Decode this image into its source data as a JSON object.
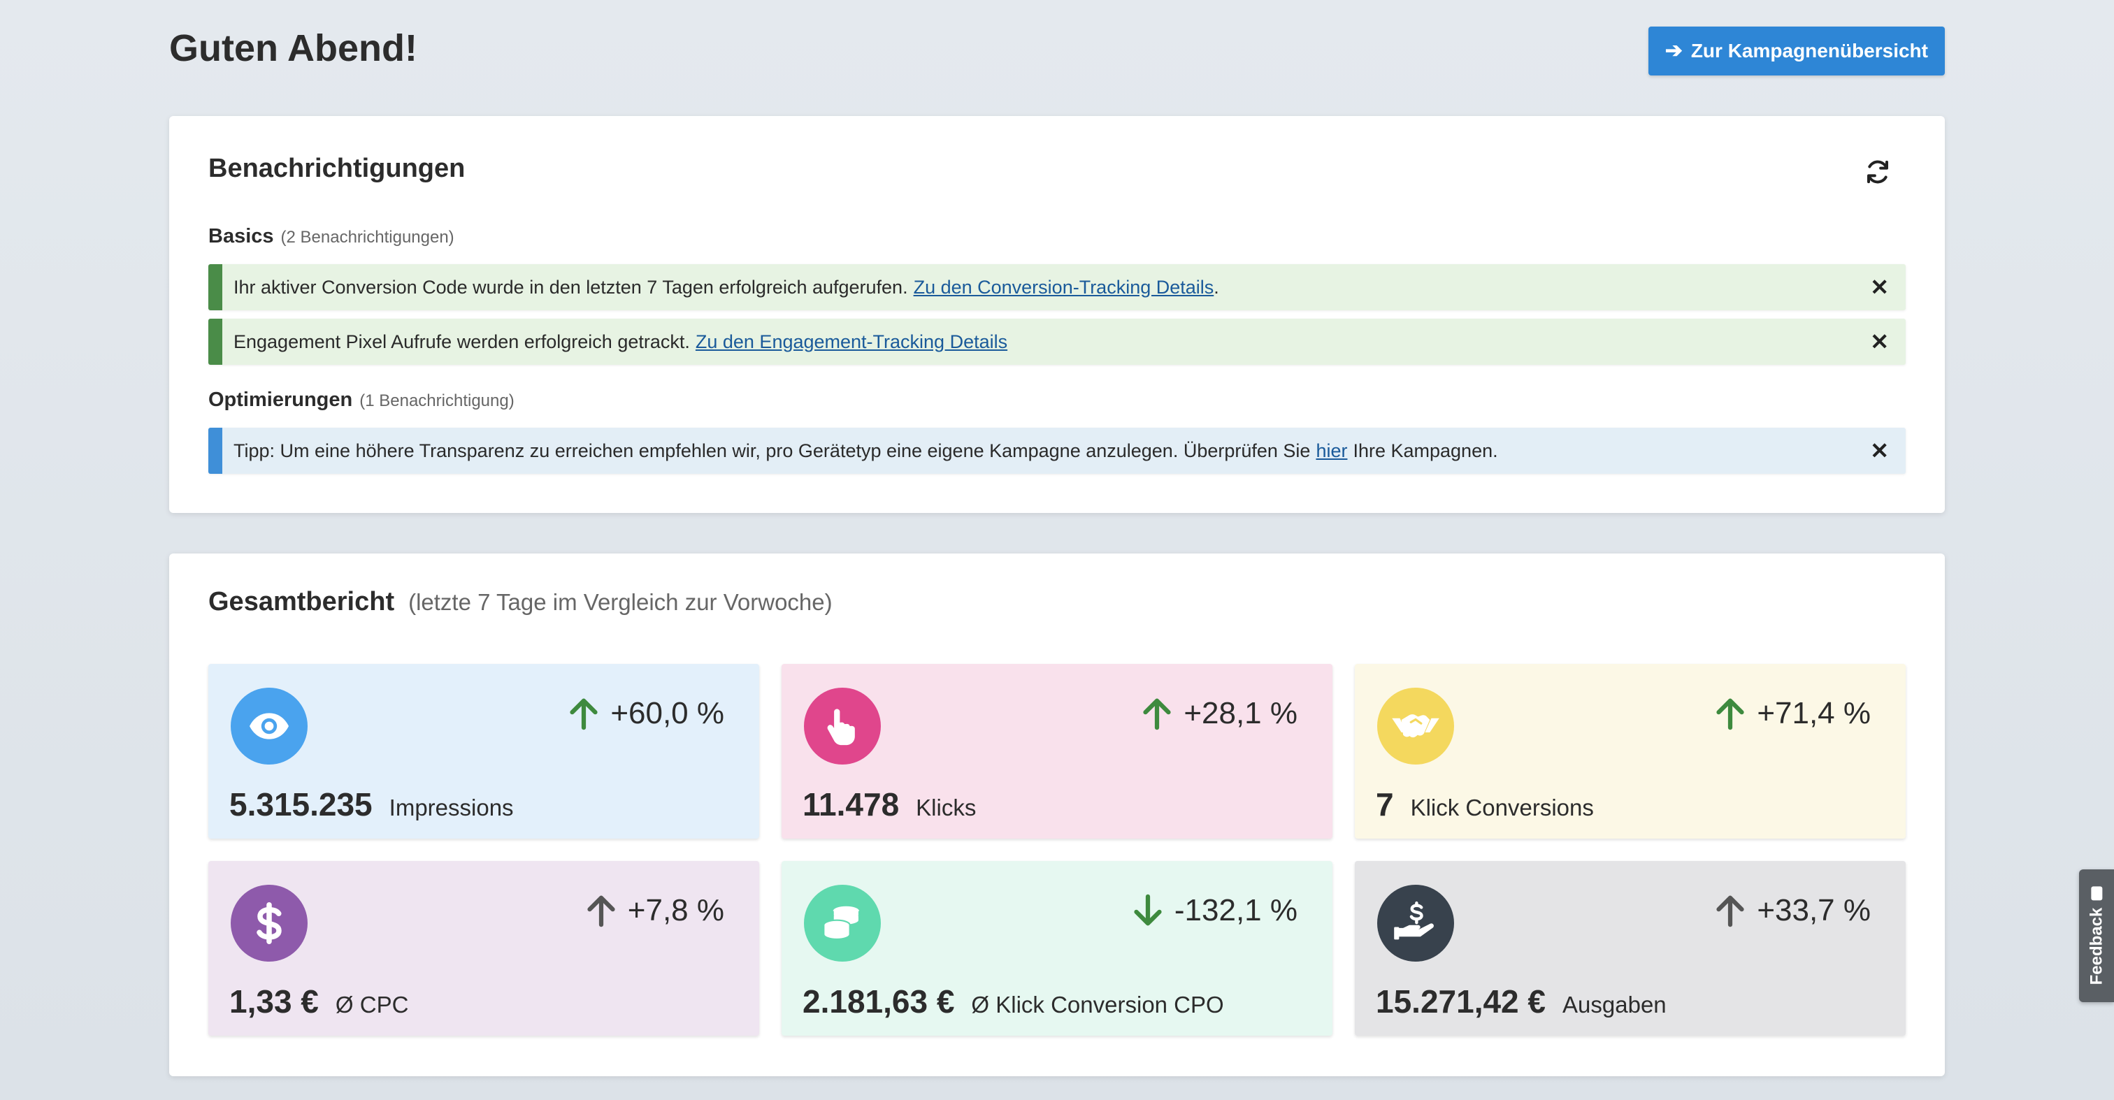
{
  "header": {
    "greeting": "Guten Abend!",
    "campaign_button": "Zur Kampagnenübersicht"
  },
  "notifications": {
    "title": "Benachrichtigungen",
    "groups": [
      {
        "name": "Basics",
        "count": "(2 Benachrichtigungen)",
        "items": [
          {
            "text": "Ihr aktiver Conversion Code wurde in den letzten 7 Tagen erfolgreich aufgerufen.",
            "link": "Zu den Conversion-Tracking Details",
            "after": "."
          },
          {
            "text": "Engagement Pixel Aufrufe werden erfolgreich getrackt.",
            "link": "Zu den Engagement-Tracking Details",
            "after": ""
          }
        ]
      },
      {
        "name": "Optimierungen",
        "count": "(1 Benachrichtigung)",
        "items": [
          {
            "text": "Tipp: Um eine höhere Transparenz zu erreichen empfehlen wir, pro Gerätetyp eine eigene Kampagne anzulegen. Überprüfen Sie",
            "link": "hier",
            "after": "Ihre Kampagnen."
          }
        ]
      }
    ]
  },
  "report": {
    "title": "Gesamtbericht",
    "subtitle": "(letzte 7 Tage im Vergleich zur Vorwoche)",
    "kpis": [
      {
        "value": "5.315.235",
        "label": "Impressions",
        "change": "+60,0 %",
        "direction": "up",
        "icon": "eye-icon",
        "bg": "#e3f0fb",
        "circle": "#4aa3ee",
        "arrow": "#3e8a3e"
      },
      {
        "value": "11.478",
        "label": "Klicks",
        "change": "+28,1 %",
        "direction": "up",
        "icon": "hand-pointer-icon",
        "bg": "#f9e1ec",
        "circle": "#e0468c",
        "arrow": "#3e8a3e"
      },
      {
        "value": "7",
        "label": "Klick Conversions",
        "change": "+71,4 %",
        "direction": "up",
        "icon": "handshake-icon",
        "bg": "#fcf8e6",
        "circle": "#f4d85e",
        "arrow": "#3e8a3e"
      },
      {
        "value": "1,33 €",
        "label": "Ø CPC",
        "change": "+7,8 %",
        "direction": "up",
        "icon": "dollar-icon",
        "bg": "#efe5f1",
        "circle": "#8e5aab",
        "arrow": "#555555"
      },
      {
        "value": "2.181,63 €",
        "label": "Ø Klick Conversion CPO",
        "change": "-132,1 %",
        "direction": "down",
        "icon": "coins-icon",
        "bg": "#e6f8f1",
        "circle": "#5fd9ae",
        "arrow": "#3e8a3e"
      },
      {
        "value": "15.271,42 €",
        "label": "Ausgaben",
        "change": "+33,7 %",
        "direction": "up",
        "icon": "hand-money-icon",
        "bg": "#e4e4e6",
        "circle": "#38424d",
        "arrow": "#555555"
      }
    ]
  },
  "feedback_label": "Feedback"
}
